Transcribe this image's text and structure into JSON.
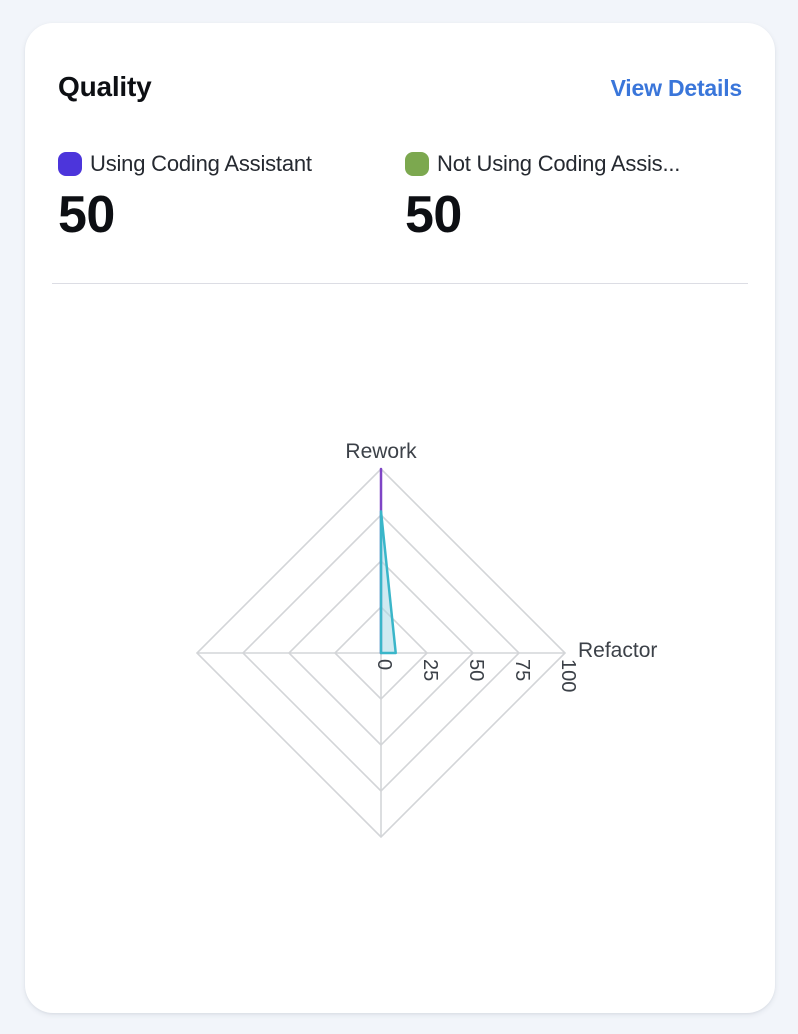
{
  "card": {
    "title": "Quality",
    "view_details_label": "View Details",
    "metrics": [
      {
        "label": "Using Coding Assistant",
        "value": "50",
        "chip_color": "#4c35db"
      },
      {
        "label": "Not Using Coding Assis...",
        "value": "50",
        "chip_color": "#7ca84f"
      }
    ]
  },
  "chart_data": {
    "type": "radar",
    "title": "",
    "indicators": [
      "Rework",
      "Refactor",
      "",
      ""
    ],
    "axis_max": 100,
    "tick_values": [
      0,
      25,
      50,
      75,
      100
    ],
    "grid_shape": "polygon",
    "grid_color": "#d3d5d8",
    "axis_label_color": "#3c4148",
    "tick_label_color": "#3c4148",
    "series": [
      {
        "name": "Using Coding Assistant",
        "values": [
          100,
          0,
          0,
          0
        ],
        "line_color": "#7e45c5",
        "fill_color": "rgba(126,69,197,0.15)"
      },
      {
        "name": "Not Using Coding Assis...",
        "values": [
          77,
          8,
          0,
          0
        ],
        "line_color": "#3ab6c9",
        "fill_color": "rgba(167,217,230,0.55)"
      }
    ]
  }
}
